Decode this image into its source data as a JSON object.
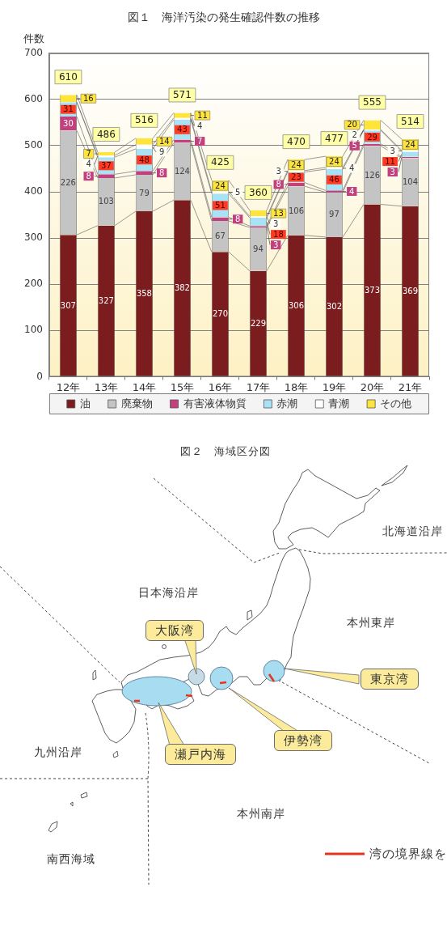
{
  "chart_data": [
    {
      "type": "bar",
      "title": "図１　海洋汚染の発生確認件数の推移",
      "ylabel": "件数",
      "categories": [
        "12年",
        "13年",
        "14年",
        "15年",
        "16年",
        "17年",
        "18年",
        "19年",
        "20年",
        "21年"
      ],
      "stacked": true,
      "series": [
        {
          "name": "油",
          "color": "#7b1d1e",
          "values": [
            307,
            327,
            358,
            382,
            270,
            229,
            306,
            302,
            373,
            369
          ],
          "value_labels": [
            "307",
            "327",
            "358",
            "382",
            "270",
            "229",
            "306",
            "302",
            "373",
            "369"
          ]
        },
        {
          "name": "廃棄物",
          "color": "#c4c4c4",
          "values": [
            226,
            103,
            79,
            124,
            67,
            94,
            106,
            97,
            126,
            104
          ],
          "value_labels": [
            "226",
            "103",
            "79",
            "124",
            "67",
            "94",
            "106",
            "97",
            "126",
            "104"
          ]
        },
        {
          "name": "有害液体物質",
          "color": "#c2407e",
          "values": [
            30,
            8,
            8,
            7,
            8,
            3,
            8,
            4,
            5,
            3
          ],
          "value_labels": [
            "30",
            "8",
            "8",
            "7",
            "8",
            "3",
            "8",
            "4",
            "5",
            "3"
          ]
        },
        {
          "name": "赤潮",
          "color": "#a9e1f5",
          "values": [
            31,
            37,
            48,
            43,
            51,
            18,
            23,
            46,
            29,
            11
          ],
          "value_labels": [
            "31",
            "37",
            "48",
            "43",
            "51",
            "18",
            "23",
            "46",
            "29",
            "11"
          ]
        },
        {
          "name": "青潮",
          "color": "#ffffff",
          "values": [
            0,
            4,
            9,
            4,
            5,
            3,
            3,
            4,
            2,
            3
          ],
          "value_labels": [
            null,
            "4",
            "9",
            "4",
            "5",
            "3",
            "3",
            "4",
            "2",
            "3"
          ]
        },
        {
          "name": "その他",
          "color": "#ffe53b",
          "values": [
            16,
            7,
            14,
            11,
            24,
            13,
            24,
            24,
            20,
            24
          ],
          "value_labels": [
            "16",
            "7",
            "14",
            "11",
            "24",
            "13",
            "24",
            "24",
            "20",
            "24"
          ]
        }
      ],
      "totals": [
        "610",
        "486",
        "516",
        "571",
        "425",
        "360",
        "470",
        "477",
        "555",
        "514"
      ],
      "ylim": [
        0,
        700
      ],
      "yticks": [
        0,
        100,
        200,
        300,
        400,
        500,
        600,
        700
      ],
      "grid": "y",
      "legend": "bottom"
    },
    {
      "type": "other",
      "title": "図２　海域区分図",
      "annotations": [
        "北海道沿岸",
        "日本海沿岸",
        "本州東岸",
        "大阪湾",
        "東京湾",
        "九州沿岸",
        "瀬戸内海",
        "伊勢湾",
        "本州南岸",
        "南西海域",
        "湾の境界線を"
      ]
    }
  ]
}
